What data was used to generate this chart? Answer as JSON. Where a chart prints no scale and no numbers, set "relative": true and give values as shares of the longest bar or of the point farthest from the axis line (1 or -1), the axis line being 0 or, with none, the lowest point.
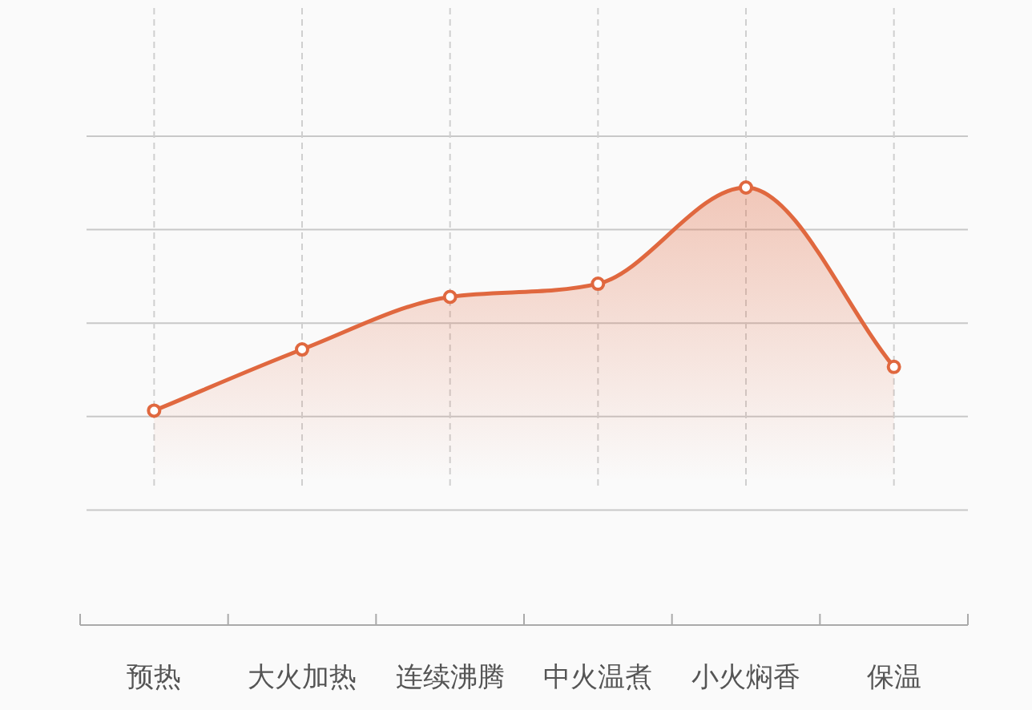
{
  "chart_data": {
    "type": "area",
    "relative": true,
    "grid": true,
    "marker": "circle",
    "categories": [
      "预热",
      "大火加热",
      "连续沸腾",
      "中火温煮",
      "小火焖香",
      "保温"
    ],
    "series": [
      {
        "color": "#e0683f",
        "values": [
          0.49,
          0.63,
          0.75,
          0.78,
          1,
          0.59
        ]
      }
    ]
  }
}
